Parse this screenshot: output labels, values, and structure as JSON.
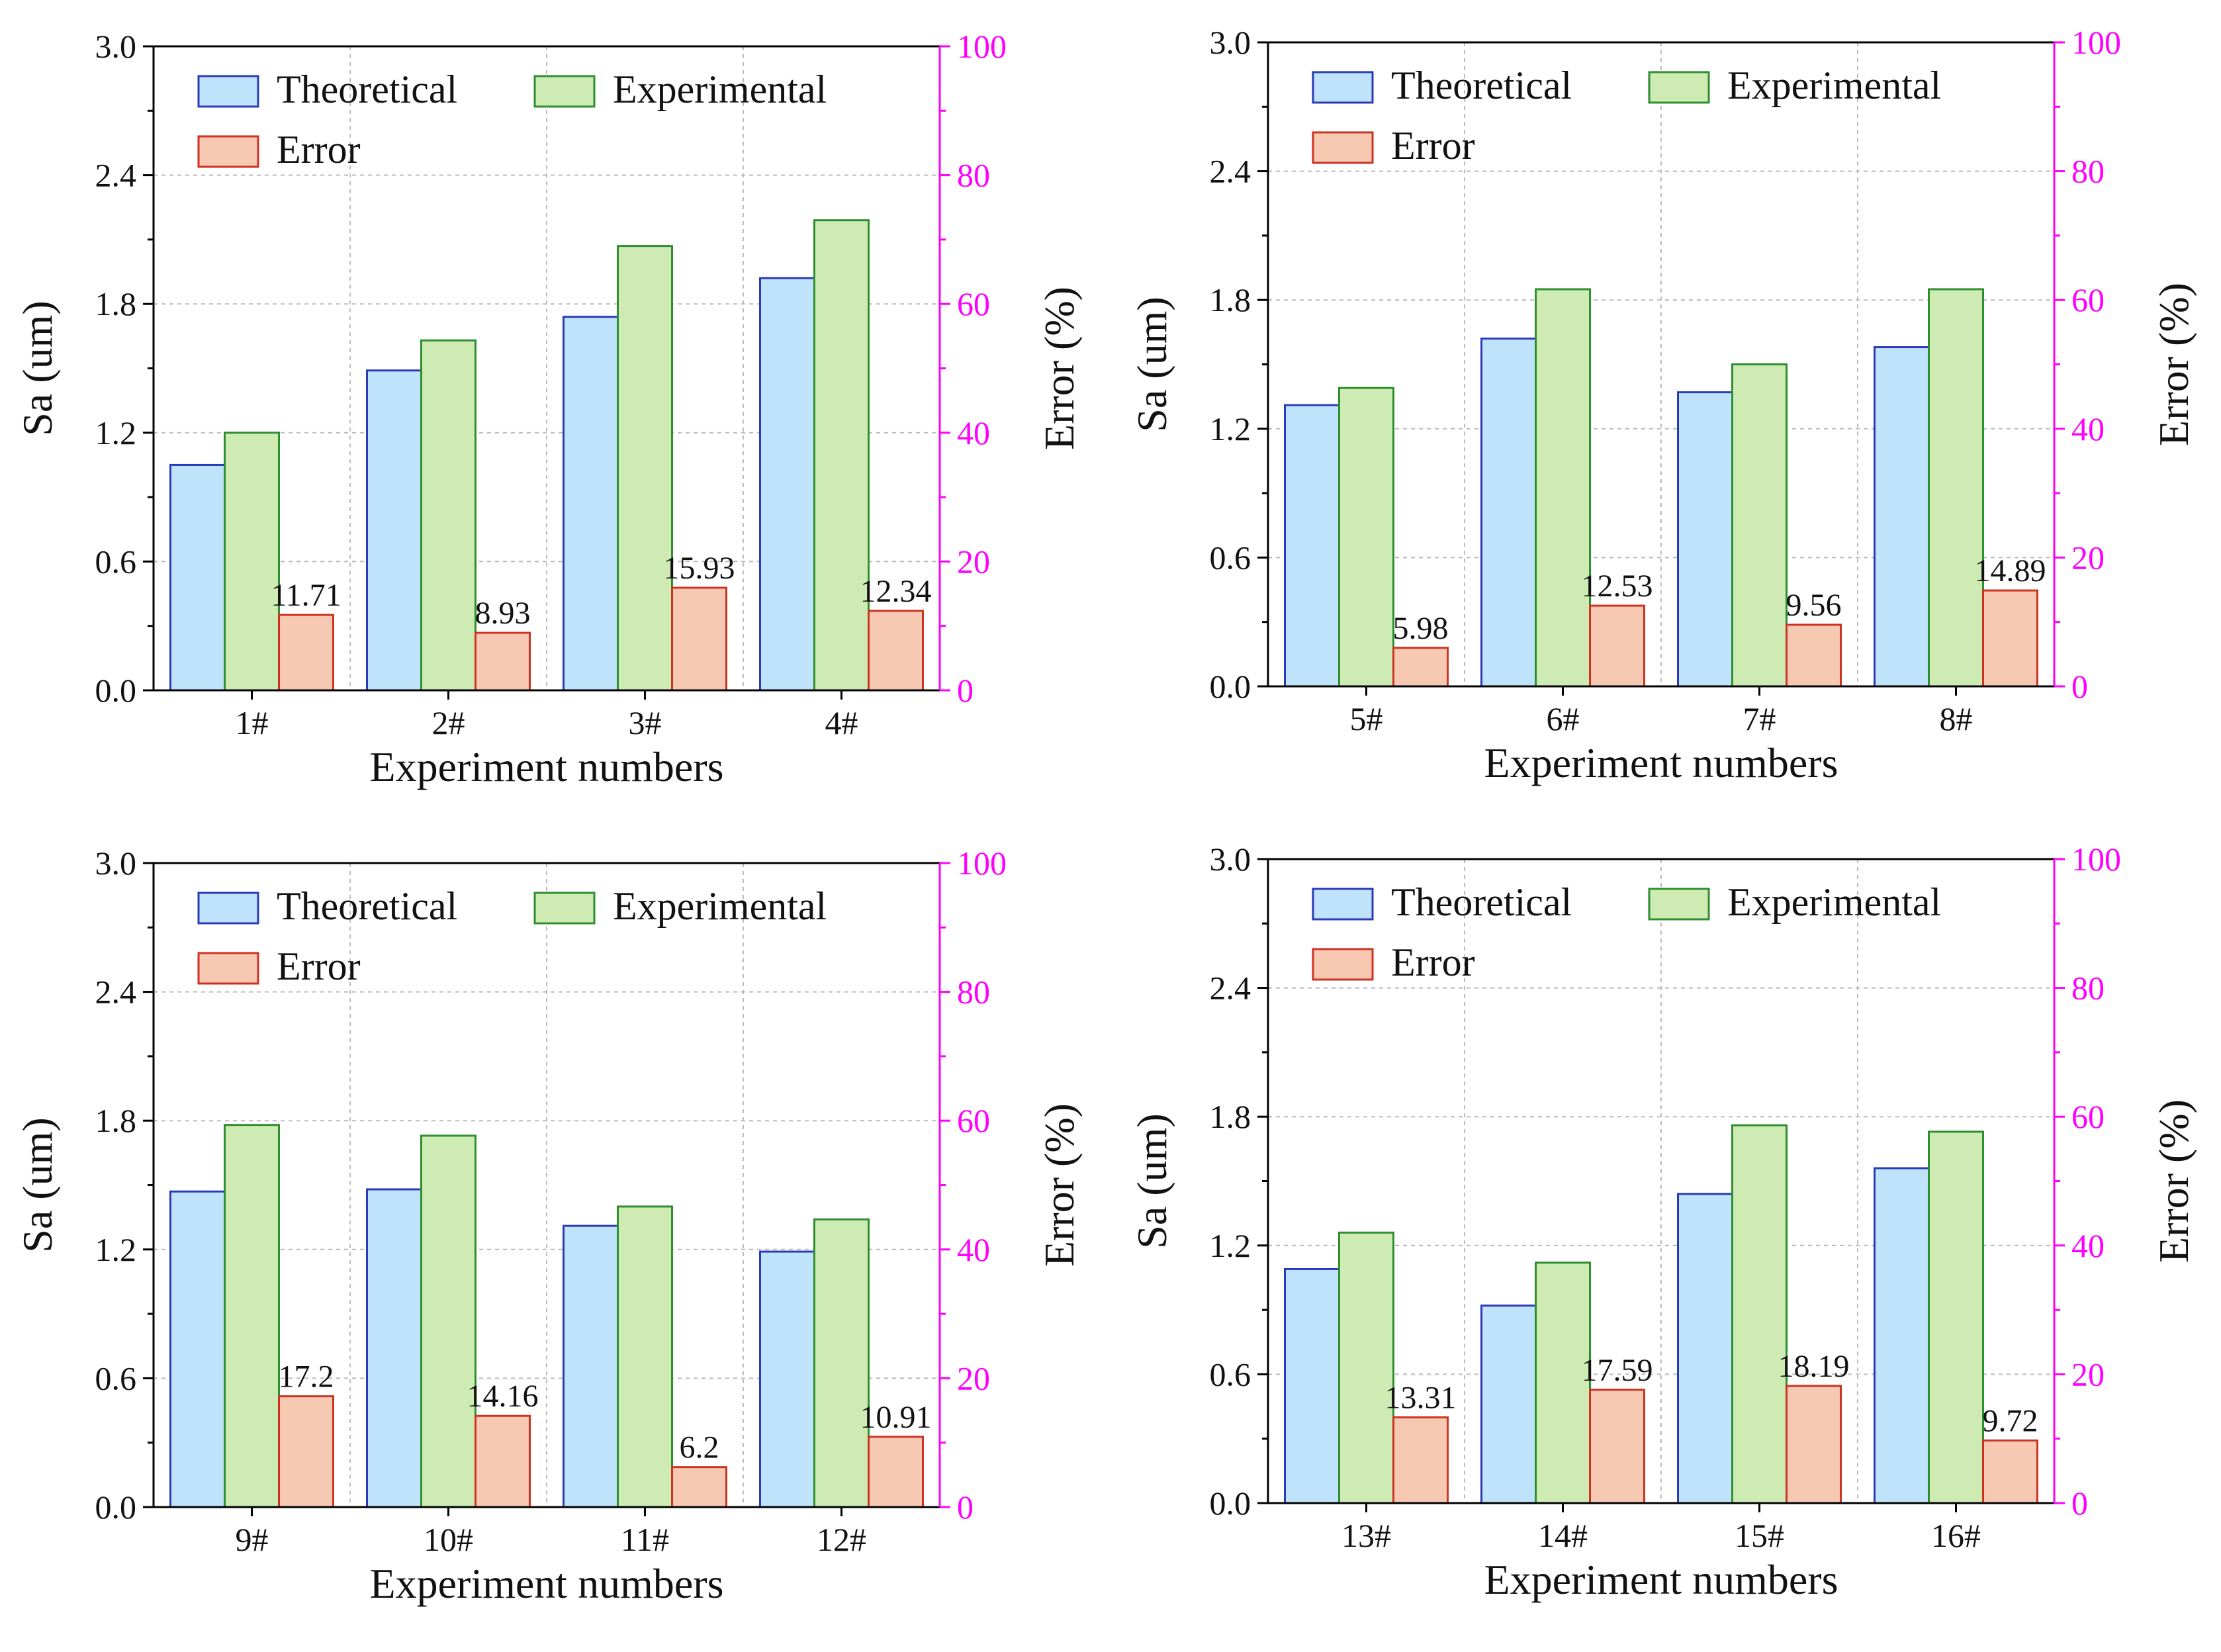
{
  "chart_data": [
    {
      "type": "bar",
      "categories": [
        "1#",
        "2#",
        "3#",
        "4#"
      ],
      "xlabel": "Experiment numbers",
      "ylabel": "Sa (um)",
      "ylabel_right": "Error (%)",
      "ylim": [
        0,
        3.0
      ],
      "yticks": [
        "0.0",
        "0.6",
        "1.2",
        "1.8",
        "2.4",
        "3.0"
      ],
      "ylim_right": [
        0,
        100
      ],
      "yticks_right": [
        "0",
        "20",
        "40",
        "60",
        "80",
        "100"
      ],
      "legend_position": "top-left",
      "series": [
        {
          "name": "Theoretical",
          "axis": "left",
          "values": [
            1.05,
            1.49,
            1.74,
            1.92
          ]
        },
        {
          "name": "Experimental",
          "axis": "left",
          "values": [
            1.2,
            1.63,
            2.07,
            2.19
          ]
        },
        {
          "name": "Error",
          "axis": "right",
          "values": [
            11.71,
            8.93,
            15.93,
            12.34
          ],
          "labels": [
            "11.71",
            "8.93",
            "15.93",
            "12.34"
          ]
        }
      ]
    },
    {
      "type": "bar",
      "categories": [
        "5#",
        "6#",
        "7#",
        "8#"
      ],
      "xlabel": "Experiment numbers",
      "ylabel": "Sa (um)",
      "ylabel_right": "Error (%)",
      "ylim": [
        0,
        3.0
      ],
      "yticks": [
        "0.0",
        "0.6",
        "1.2",
        "1.8",
        "2.4",
        "3.0"
      ],
      "ylim_right": [
        0,
        100
      ],
      "yticks_right": [
        "0",
        "20",
        "40",
        "60",
        "80",
        "100"
      ],
      "legend_position": "top-left",
      "series": [
        {
          "name": "Theoretical",
          "axis": "left",
          "values": [
            1.31,
            1.62,
            1.37,
            1.58
          ]
        },
        {
          "name": "Experimental",
          "axis": "left",
          "values": [
            1.39,
            1.85,
            1.5,
            1.85
          ]
        },
        {
          "name": "Error",
          "axis": "right",
          "values": [
            5.98,
            12.53,
            9.56,
            14.89
          ],
          "labels": [
            "5.98",
            "12.53",
            "9.56",
            "14.89"
          ]
        }
      ]
    },
    {
      "type": "bar",
      "categories": [
        "9#",
        "10#",
        "11#",
        "12#"
      ],
      "xlabel": "Experiment numbers",
      "ylabel": "Sa (um)",
      "ylabel_right": "Error (%)",
      "ylim": [
        0,
        3.0
      ],
      "yticks": [
        "0.0",
        "0.6",
        "1.2",
        "1.8",
        "2.4",
        "3.0"
      ],
      "ylim_right": [
        0,
        100
      ],
      "yticks_right": [
        "0",
        "20",
        "40",
        "60",
        "80",
        "100"
      ],
      "legend_position": "top-left",
      "series": [
        {
          "name": "Theoretical",
          "axis": "left",
          "values": [
            1.47,
            1.48,
            1.31,
            1.19
          ]
        },
        {
          "name": "Experimental",
          "axis": "left",
          "values": [
            1.78,
            1.73,
            1.4,
            1.34
          ]
        },
        {
          "name": "Error",
          "axis": "right",
          "values": [
            17.2,
            14.16,
            6.2,
            10.91
          ],
          "labels": [
            "17.2",
            "14.16",
            "6.2",
            "10.91"
          ]
        }
      ]
    },
    {
      "type": "bar",
      "categories": [
        "13#",
        "14#",
        "15#",
        "16#"
      ],
      "xlabel": "Experiment numbers",
      "ylabel": "Sa (um)",
      "ylabel_right": "Error (%)",
      "ylim": [
        0,
        3.0
      ],
      "yticks": [
        "0.0",
        "0.6",
        "1.2",
        "1.8",
        "2.4",
        "3.0"
      ],
      "ylim_right": [
        0,
        100
      ],
      "yticks_right": [
        "0",
        "20",
        "40",
        "60",
        "80",
        "100"
      ],
      "legend_position": "top-left",
      "series": [
        {
          "name": "Theoretical",
          "axis": "left",
          "values": [
            1.09,
            0.92,
            1.44,
            1.56
          ]
        },
        {
          "name": "Experimental",
          "axis": "left",
          "values": [
            1.26,
            1.12,
            1.76,
            1.73
          ]
        },
        {
          "name": "Error",
          "axis": "right",
          "values": [
            13.31,
            17.59,
            18.19,
            9.72
          ],
          "labels": [
            "13.31",
            "17.59",
            "18.19",
            "9.72"
          ]
        }
      ]
    }
  ],
  "colors": {
    "theoretical_fill": "#bfe3fb",
    "theoretical_edge": "#2b3bb8",
    "experimental_fill": "#cdebb3",
    "experimental_edge": "#2f8f2f",
    "error_fill": "#f7c9b3",
    "error_edge": "#cc3322",
    "right_axis": "#ff00ff",
    "grid": "#bbbbbb"
  }
}
